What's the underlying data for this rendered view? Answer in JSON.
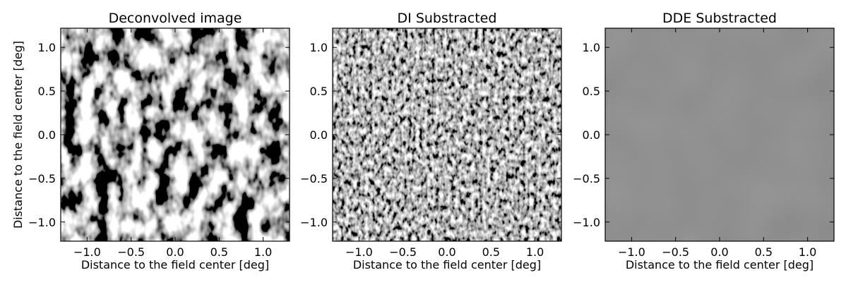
{
  "figure": {
    "panels": [
      {
        "title": "Deconvolved image",
        "pattern": "noise-high-contrast",
        "background": "#7a7a7a"
      },
      {
        "title": "DI Substracted",
        "pattern": "noise-fringes",
        "background": "#4d4d4d"
      },
      {
        "title": "DDE Substracted",
        "pattern": "flat",
        "background": "#474747"
      }
    ]
  },
  "chart_data": [
    {
      "type": "heatmap",
      "title": "Deconvolved image",
      "xlabel": "Distance to the field center [deg]",
      "ylabel": "Distance to the field center [deg]",
      "xlim": [
        -1.3,
        1.3
      ],
      "ylim": [
        -1.22,
        1.22
      ],
      "xticks": [
        -1.0,
        -0.5,
        0.0,
        0.5,
        1.0
      ],
      "yticks": [
        1.0,
        0.5,
        0.0,
        -0.5,
        -1.0
      ],
      "xtick_labels": [
        "−1.0",
        "−0.5",
        "0.0",
        "0.5",
        "1.0"
      ],
      "ytick_labels": [
        "1.0",
        "0.5",
        "0.0",
        "−0.5",
        "−1.0"
      ],
      "colormap": "gray"
    },
    {
      "type": "heatmap",
      "title": "DI Substracted",
      "xlabel": "Distance to the field center [deg]",
      "ylabel": "",
      "xlim": [
        -1.3,
        1.3
      ],
      "ylim": [
        -1.22,
        1.22
      ],
      "xticks": [
        -1.0,
        -0.5,
        0.0,
        0.5,
        1.0
      ],
      "yticks": [
        1.0,
        0.5,
        0.0,
        -0.5,
        -1.0
      ],
      "xtick_labels": [
        "−1.0",
        "−0.5",
        "0.0",
        "0.5",
        "1.0"
      ],
      "ytick_labels": [
        "1.0",
        "0.5",
        "0.0",
        "−0.5",
        "−1.0"
      ],
      "colormap": "gray"
    },
    {
      "type": "heatmap",
      "title": "DDE Substracted",
      "xlabel": "Distance to the field center [deg]",
      "ylabel": "",
      "xlim": [
        -1.3,
        1.3
      ],
      "ylim": [
        -1.22,
        1.22
      ],
      "xticks": [
        -1.0,
        -0.5,
        0.0,
        0.5,
        1.0
      ],
      "yticks": [
        1.0,
        0.5,
        0.0,
        -0.5,
        -1.0
      ],
      "xtick_labels": [
        "−1.0",
        "−0.5",
        "0.0",
        "0.5",
        "1.0"
      ],
      "ytick_labels": [
        "1.0",
        "0.5",
        "0.0",
        "−0.5",
        "−1.0"
      ],
      "colormap": "gray"
    }
  ]
}
